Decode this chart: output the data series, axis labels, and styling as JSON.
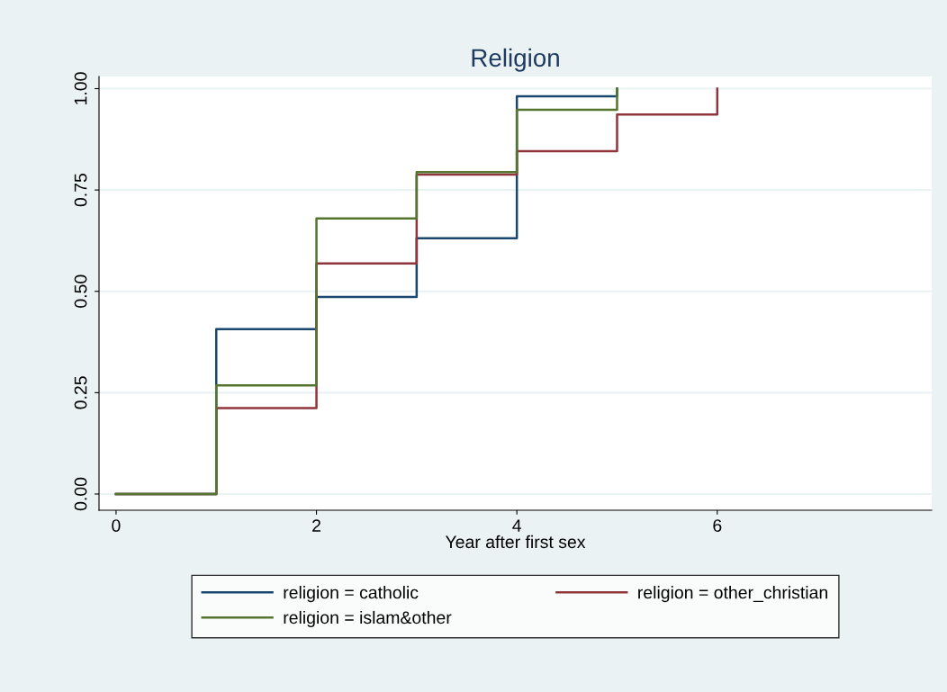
{
  "chart_data": {
    "type": "step",
    "title": "Religion",
    "xlabel": "Year after first sex",
    "xlim": [
      -0.17,
      8.14
    ],
    "xticks": [
      0,
      2,
      4,
      6
    ],
    "ylim": [
      -0.04,
      1.03
    ],
    "yticks": [
      {
        "value": 0,
        "label": "0.00"
      },
      {
        "value": 0.25,
        "label": "0.25"
      },
      {
        "value": 0.5,
        "label": "0.50"
      },
      {
        "value": 0.75,
        "label": "0.75"
      },
      {
        "value": 1,
        "label": "1.00"
      }
    ],
    "grid": "y",
    "legend": "bottom",
    "series": [
      {
        "name": "religion = catholic",
        "color": "#1a476f",
        "x": [
          0,
          1,
          2,
          3,
          4,
          5
        ],
        "values": [
          0,
          0.407,
          0.486,
          0.631,
          0.981,
          1.0
        ]
      },
      {
        "name": "religion = other_christian",
        "color": "#90353b",
        "x": [
          0,
          1,
          2,
          3,
          4,
          5,
          6
        ],
        "values": [
          0,
          0.212,
          0.569,
          0.788,
          0.846,
          0.936,
          1.0
        ]
      },
      {
        "name": "religion = islam&other",
        "color": "#55752f",
        "x": [
          0,
          1,
          2,
          3,
          4,
          5
        ],
        "values": [
          0,
          0.268,
          0.68,
          0.794,
          0.948,
          1.0
        ]
      }
    ]
  }
}
